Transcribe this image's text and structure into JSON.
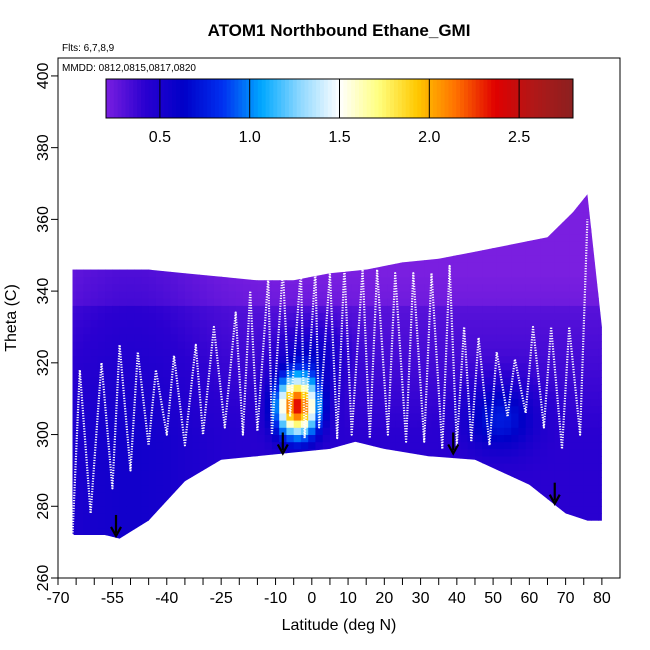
{
  "chart_data": {
    "type": "heatmap",
    "title": "ATOM1 Northbound Ethane_GMI",
    "flights_label": "Flts: 6,7,8,9",
    "dates_label": "MMDD: 0812,0815,0817,0820",
    "xlabel": "Latitude (deg N)",
    "ylabel": "Theta (C)",
    "xlim": [
      -70,
      85
    ],
    "ylim": [
      260,
      405
    ],
    "x_ticks": [
      -70,
      -55,
      -40,
      -25,
      -10,
      0,
      10,
      20,
      30,
      40,
      50,
      60,
      70,
      80
    ],
    "x_minor_ticks": [
      -65,
      -60,
      -50,
      -45,
      -35,
      -30,
      -20,
      -15,
      -5,
      5,
      15,
      25,
      35,
      45,
      55,
      65,
      75
    ],
    "y_ticks": [
      260,
      280,
      300,
      320,
      340,
      360,
      380,
      400
    ],
    "colorbar": {
      "range": [
        0.2,
        2.8
      ],
      "ticks": [
        0.5,
        1.0,
        1.5,
        2.0,
        2.5
      ],
      "colors": [
        "#7a1fe0",
        "#2a00d0",
        "#0000c8",
        "#0030f0",
        "#00a8ff",
        "#8fd8ff",
        "#ffffff",
        "#ffff80",
        "#ffc800",
        "#ff7000",
        "#e00000",
        "#b01818",
        "#8b2020"
      ]
    },
    "top_boundary": [
      [
        -66,
        346
      ],
      [
        -60,
        346
      ],
      [
        -55,
        346
      ],
      [
        -45,
        346
      ],
      [
        -35,
        345
      ],
      [
        -25,
        344
      ],
      [
        -15,
        343
      ],
      [
        -5,
        343
      ],
      [
        5,
        345
      ],
      [
        15,
        346
      ],
      [
        25,
        348
      ],
      [
        35,
        349
      ],
      [
        45,
        351
      ],
      [
        55,
        353
      ],
      [
        65,
        355
      ],
      [
        72,
        362
      ],
      [
        76,
        367
      ],
      [
        80,
        330
      ],
      [
        80,
        277
      ]
    ],
    "bottom_boundary": [
      [
        -66,
        272
      ],
      [
        -57,
        272
      ],
      [
        -53,
        271
      ],
      [
        -45,
        276
      ],
      [
        -35,
        287
      ],
      [
        -25,
        293
      ],
      [
        -15,
        294
      ],
      [
        -5,
        295
      ],
      [
        5,
        296
      ],
      [
        12,
        298
      ],
      [
        20,
        296
      ],
      [
        32,
        294
      ],
      [
        45,
        293
      ],
      [
        60,
        286
      ],
      [
        70,
        278
      ],
      [
        76,
        276
      ],
      [
        80,
        276
      ]
    ],
    "hotspot": {
      "lat": -4,
      "theta": 308,
      "peak": 2.3
    },
    "secondary_highs": [
      {
        "lat": 52,
        "theta": 305,
        "value": 0.7
      },
      {
        "lat": 0,
        "theta": 322,
        "value": 0.6
      }
    ],
    "flight_theta_max": [
      [
        -64,
        318
      ],
      [
        -58,
        320
      ],
      [
        -53,
        325
      ],
      [
        -48,
        323
      ],
      [
        -43,
        318
      ],
      [
        -38,
        322
      ],
      [
        -32,
        325
      ],
      [
        -27,
        330
      ],
      [
        -21,
        334
      ],
      [
        -17,
        340
      ],
      [
        -12,
        344
      ],
      [
        -8,
        346
      ],
      [
        -3,
        346
      ],
      [
        1,
        346
      ],
      [
        5,
        345
      ],
      [
        9,
        347
      ],
      [
        14,
        346
      ],
      [
        18,
        346
      ],
      [
        23,
        345
      ],
      [
        28,
        345
      ],
      [
        33,
        345
      ],
      [
        38,
        347
      ],
      [
        42,
        330
      ],
      [
        46,
        327
      ],
      [
        51,
        323
      ],
      [
        56,
        321
      ],
      [
        61,
        330
      ],
      [
        66,
        330
      ],
      [
        71,
        330
      ],
      [
        76,
        360
      ]
    ],
    "flight_theta_min": [
      [
        -66,
        272
      ],
      [
        -61,
        278
      ],
      [
        -55,
        285
      ],
      [
        -50,
        290
      ],
      [
        -45,
        297
      ],
      [
        -40,
        300
      ],
      [
        -35,
        297
      ],
      [
        -30,
        300
      ],
      [
        -24,
        302
      ],
      [
        -19,
        300
      ],
      [
        -15,
        301
      ],
      [
        -11,
        300
      ],
      [
        -6,
        305
      ],
      [
        -2,
        299
      ],
      [
        2,
        302
      ],
      [
        7,
        299
      ],
      [
        11,
        300
      ],
      [
        16,
        299
      ],
      [
        21,
        300
      ],
      [
        26,
        298
      ],
      [
        31,
        298
      ],
      [
        36,
        296
      ],
      [
        40,
        297
      ],
      [
        44,
        298
      ],
      [
        49,
        297
      ],
      [
        54,
        305
      ],
      [
        59,
        306
      ],
      [
        64,
        302
      ],
      [
        69,
        296
      ],
      [
        74,
        300
      ]
    ],
    "arrow_markers": [
      {
        "lat": -54,
        "theta": 272
      },
      {
        "lat": -8,
        "theta": 295
      },
      {
        "lat": 39,
        "theta": 295
      },
      {
        "lat": 67,
        "theta": 281
      }
    ]
  }
}
